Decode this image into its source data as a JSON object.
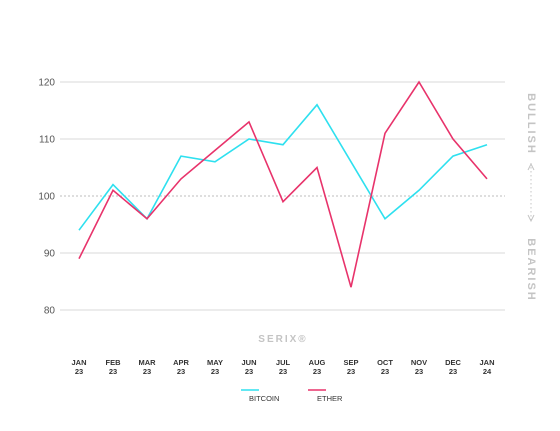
{
  "chart_data": {
    "type": "line",
    "categories": [
      [
        "JAN",
        "23"
      ],
      [
        "FEB",
        "23"
      ],
      [
        "MAR",
        "23"
      ],
      [
        "APR",
        "23"
      ],
      [
        "MAY",
        "23"
      ],
      [
        "JUN",
        "23"
      ],
      [
        "JUL",
        "23"
      ],
      [
        "AUG",
        "23"
      ],
      [
        "SEP",
        "23"
      ],
      [
        "OCT",
        "23"
      ],
      [
        "NOV",
        "23"
      ],
      [
        "DEC",
        "23"
      ],
      [
        "JAN",
        "24"
      ]
    ],
    "series": [
      {
        "name": "BITCOIN",
        "color": "#2ee0ef",
        "values": [
          94,
          102,
          96,
          107,
          106,
          110,
          109,
          116,
          106,
          96,
          101,
          107,
          109
        ]
      },
      {
        "name": "ETHER",
        "color": "#e8336b",
        "values": [
          89,
          101,
          96,
          103,
          108,
          113,
          99,
          105,
          84,
          111,
          120,
          110,
          103
        ]
      }
    ],
    "yticks": [
      80,
      90,
      100,
      110,
      120
    ],
    "ylim": [
      80,
      120
    ],
    "grid": true,
    "legend": "bottom-center",
    "watermark": "SERIX®",
    "side_labels": {
      "top": "BULLISH",
      "bottom": "BEARISH"
    }
  }
}
